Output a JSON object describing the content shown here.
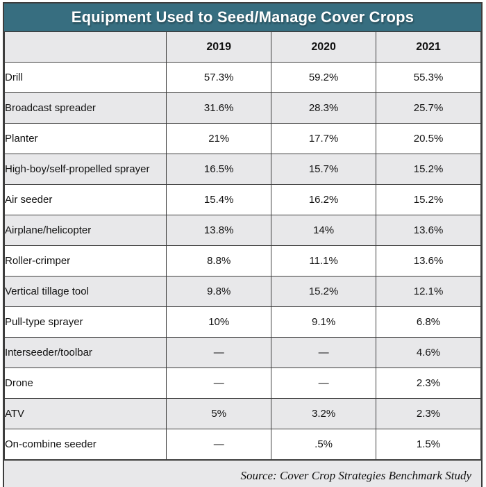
{
  "title": "Equipment Used to Seed/Manage Cover Crops",
  "header": {
    "columns": [
      "",
      "2019",
      "2020",
      "2021"
    ]
  },
  "rows": [
    {
      "label": "Drill",
      "values": [
        "57.3%",
        "59.2%",
        "55.3%"
      ]
    },
    {
      "label": "Broadcast spreader",
      "values": [
        "31.6%",
        "28.3%",
        "25.7%"
      ]
    },
    {
      "label": "Planter",
      "values": [
        "21%",
        "17.7%",
        "20.5%"
      ]
    },
    {
      "label": "High-boy/self-propelled sprayer",
      "values": [
        "16.5%",
        "15.7%",
        "15.2%"
      ]
    },
    {
      "label": "Air seeder",
      "values": [
        "15.4%",
        "16.2%",
        "15.2%"
      ]
    },
    {
      "label": "Airplane/helicopter",
      "values": [
        "13.8%",
        "14%",
        "13.6%"
      ]
    },
    {
      "label": "Roller-crimper",
      "values": [
        "8.8%",
        "11.1%",
        "13.6%"
      ]
    },
    {
      "label": "Vertical tillage tool",
      "values": [
        "9.8%",
        "15.2%",
        "12.1%"
      ]
    },
    {
      "label": "Pull-type sprayer",
      "values": [
        "10%",
        "9.1%",
        "6.8%"
      ]
    },
    {
      "label": "Interseeder/toolbar",
      "values": [
        "—",
        "—",
        "4.6%"
      ]
    },
    {
      "label": "Drone",
      "values": [
        "—",
        "—",
        "2.3%"
      ]
    },
    {
      "label": "ATV",
      "values": [
        "5%",
        "3.2%",
        "2.3%"
      ]
    },
    {
      "label": "On-combine seeder",
      "values": [
        "—",
        ".5%",
        "1.5%"
      ]
    }
  ],
  "source": "Source: Cover Crop Strategies Benchmark Study",
  "colors": {
    "title_bg": "#376e80",
    "title_text": "#ffffff",
    "stripe_bg": "#e8e8ea",
    "row_bg": "#ffffff",
    "border": "#3d3d3d"
  },
  "chart_data": {
    "type": "table",
    "title": "Equipment Used to Seed/Manage Cover Crops",
    "categories": [
      "2019",
      "2020",
      "2021"
    ],
    "series": [
      {
        "name": "Drill",
        "values": [
          57.3,
          59.2,
          55.3
        ]
      },
      {
        "name": "Broadcast spreader",
        "values": [
          31.6,
          28.3,
          25.7
        ]
      },
      {
        "name": "Planter",
        "values": [
          21,
          17.7,
          20.5
        ]
      },
      {
        "name": "High-boy/self-propelled sprayer",
        "values": [
          16.5,
          15.7,
          15.2
        ]
      },
      {
        "name": "Air seeder",
        "values": [
          15.4,
          16.2,
          15.2
        ]
      },
      {
        "name": "Airplane/helicopter",
        "values": [
          13.8,
          14,
          13.6
        ]
      },
      {
        "name": "Roller-crimper",
        "values": [
          8.8,
          11.1,
          13.6
        ]
      },
      {
        "name": "Vertical tillage tool",
        "values": [
          9.8,
          15.2,
          12.1
        ]
      },
      {
        "name": "Pull-type sprayer",
        "values": [
          10,
          9.1,
          6.8
        ]
      },
      {
        "name": "Interseeder/toolbar",
        "values": [
          null,
          null,
          4.6
        ]
      },
      {
        "name": "Drone",
        "values": [
          null,
          null,
          2.3
        ]
      },
      {
        "name": "ATV",
        "values": [
          5,
          3.2,
          2.3
        ]
      },
      {
        "name": "On-combine seeder",
        "values": [
          null,
          0.5,
          1.5
        ]
      }
    ],
    "unit": "%",
    "missing_marker": "—",
    "source": "Source: Cover Crop Strategies Benchmark Study"
  }
}
